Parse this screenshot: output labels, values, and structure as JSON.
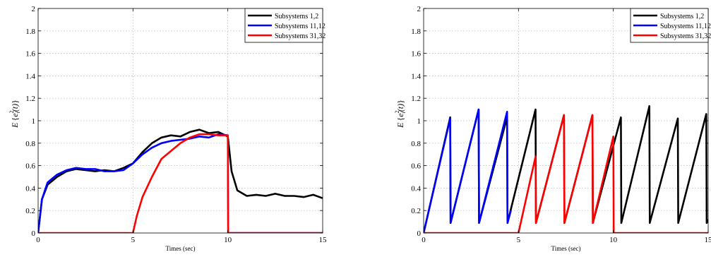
{
  "chart_data": [
    {
      "type": "line",
      "title": "",
      "xlabel": "Times (sec)",
      "ylabel": "E{e_i^2(t)}",
      "xlim": [
        0,
        15
      ],
      "ylim": [
        0,
        2
      ],
      "xticks": [
        0,
        5,
        10,
        15
      ],
      "yticks": [
        0,
        0.2,
        0.4,
        0.6,
        0.8,
        1,
        1.2,
        1.4,
        1.6,
        1.8,
        2
      ],
      "xtick_labels": [
        "0",
        "5",
        "10",
        "15"
      ],
      "ytick_labels": [
        "0",
        "0.2",
        "0.4",
        "0.6",
        "0.8",
        "1",
        "1.2",
        "1.4",
        "1.6",
        "1.8",
        "2"
      ],
      "grid": true,
      "legend_position": "top-right",
      "series": [
        {
          "name": "Subsystems 1,2",
          "color": "#000000",
          "x": [
            0,
            0.2,
            0.5,
            1,
            1.5,
            2,
            2.5,
            3,
            3.5,
            4,
            4.5,
            5,
            5.5,
            6,
            6.5,
            7,
            7.5,
            8,
            8.5,
            9,
            9.5,
            10,
            10.2,
            10.5,
            11,
            11.5,
            12,
            12.5,
            13,
            13.5,
            14,
            14.5,
            15
          ],
          "y": [
            0,
            0.3,
            0.43,
            0.5,
            0.55,
            0.57,
            0.56,
            0.55,
            0.56,
            0.55,
            0.58,
            0.62,
            0.72,
            0.8,
            0.85,
            0.87,
            0.86,
            0.9,
            0.92,
            0.89,
            0.9,
            0.86,
            0.55,
            0.38,
            0.33,
            0.34,
            0.33,
            0.35,
            0.33,
            0.33,
            0.32,
            0.34,
            0.31
          ]
        },
        {
          "name": "Subsystems 11,12",
          "color": "#0000ff",
          "x": [
            0,
            0.2,
            0.5,
            1,
            1.5,
            2,
            2.5,
            3,
            3.5,
            4,
            4.5,
            5,
            5.5,
            6,
            6.5,
            7,
            7.5,
            8,
            8.5,
            9,
            9.5,
            10,
            10.02,
            15
          ],
          "y": [
            0,
            0.3,
            0.45,
            0.52,
            0.56,
            0.58,
            0.57,
            0.57,
            0.55,
            0.55,
            0.56,
            0.62,
            0.7,
            0.76,
            0.8,
            0.82,
            0.83,
            0.84,
            0.86,
            0.85,
            0.88,
            0.87,
            0,
            0
          ]
        },
        {
          "name": "Subsystems 31,32",
          "color": "#ff0000",
          "x": [
            0,
            4.98,
            5,
            5.2,
            5.5,
            6,
            6.5,
            7,
            7.5,
            8,
            8.5,
            9,
            9.5,
            10,
            10.02,
            15
          ],
          "y": [
            0,
            0,
            0,
            0.15,
            0.32,
            0.5,
            0.66,
            0.73,
            0.8,
            0.85,
            0.88,
            0.88,
            0.87,
            0.87,
            0,
            0
          ]
        }
      ]
    },
    {
      "type": "line",
      "title": "",
      "xlabel": "Times (sec)",
      "ylabel": "E{e_i^2(t)}",
      "xlim": [
        0,
        15
      ],
      "ylim": [
        0,
        2
      ],
      "xticks": [
        0,
        5,
        10,
        15
      ],
      "yticks": [
        0,
        0.2,
        0.4,
        0.6,
        0.8,
        1,
        1.2,
        1.4,
        1.6,
        1.8,
        2
      ],
      "xtick_labels": [
        "0",
        "5",
        "10",
        "15"
      ],
      "ytick_labels": [
        "0",
        "0.2",
        "0.4",
        "0.6",
        "0.8",
        "1",
        "1.2",
        "1.4",
        "1.6",
        "1.8",
        "2"
      ],
      "grid": true,
      "legend_position": "top-right",
      "series": [
        {
          "name": "Subsystems 1,2",
          "color": "#000000",
          "x": [
            0,
            1.4,
            1.42,
            2.9,
            2.92,
            4.4,
            4.42,
            5.9,
            5.92,
            7.4,
            7.42,
            8.9,
            8.92,
            10.4,
            10.42,
            11.9,
            11.92,
            13.4,
            13.42,
            14.9,
            14.92,
            15
          ],
          "y": [
            0,
            1.03,
            0.09,
            1.1,
            0.09,
            1.03,
            0.09,
            1.1,
            0.09,
            1.05,
            0.09,
            1.05,
            0.09,
            1.03,
            0.09,
            1.13,
            0.09,
            1.02,
            0.09,
            1.06,
            0.09,
            0.12
          ]
        },
        {
          "name": "Subsystems 11,12",
          "color": "#0000ff",
          "x": [
            0,
            1.4,
            1.42,
            2.9,
            2.92,
            4.4,
            4.42,
            4.6
          ],
          "y": [
            0,
            1.02,
            0.09,
            1.1,
            0.09,
            1.08,
            0.09,
            0.2
          ]
        },
        {
          "name": "Subsystems 31,32",
          "color": "#ff0000",
          "x": [
            0,
            5,
            5.9,
            5.92,
            7.4,
            7.42,
            8.9,
            8.92,
            10,
            10.02,
            15
          ],
          "y": [
            0,
            0,
            0.68,
            0.09,
            1.05,
            0.09,
            1.05,
            0.09,
            0.86,
            0,
            0
          ]
        }
      ]
    }
  ]
}
